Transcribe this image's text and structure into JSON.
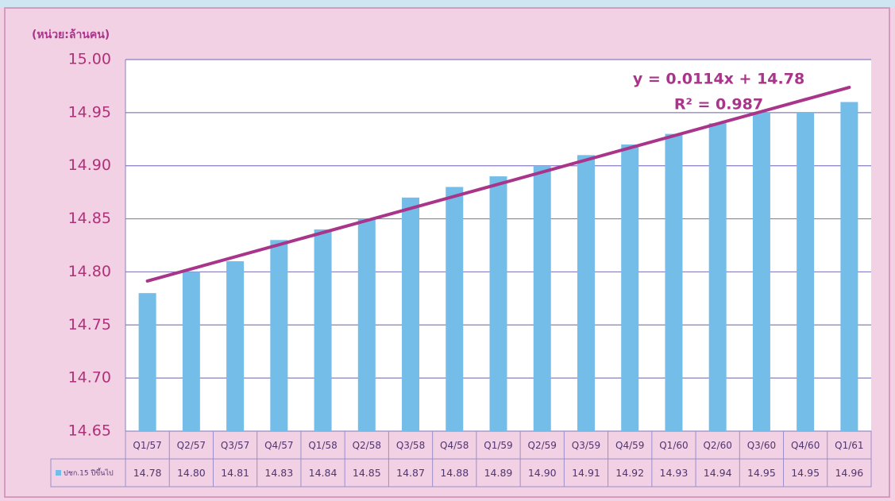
{
  "chart_data": {
    "type": "bar",
    "unit_label": "(หน่วย:ล้านคน)",
    "categories": [
      "Q1/57",
      "Q2/57",
      "Q3/57",
      "Q4/57",
      "Q1/58",
      "Q2/58",
      "Q3/58",
      "Q4/58",
      "Q1/59",
      "Q2/59",
      "Q3/59",
      "Q4/59",
      "Q1/60",
      "Q2/60",
      "Q3/60",
      "Q4/60",
      "Q1/61"
    ],
    "series": [
      {
        "name": "ปชก.15 ปีขึ้นไป",
        "color": "#74bde9",
        "values": [
          14.78,
          14.8,
          14.81,
          14.83,
          14.84,
          14.85,
          14.87,
          14.88,
          14.89,
          14.9,
          14.91,
          14.92,
          14.93,
          14.94,
          14.95,
          14.95,
          14.96
        ],
        "value_labels": [
          "14.78",
          "14.80",
          "14.81",
          "14.83",
          "14.84",
          "14.85",
          "14.87",
          "14.88",
          "14.89",
          "14.90",
          "14.91",
          "14.92",
          "14.93",
          "14.94",
          "14.95",
          "14.95",
          "14.96"
        ]
      }
    ],
    "ylim": [
      14.65,
      15.0
    ],
    "yticks": [
      14.65,
      {
        "value": 14.7,
        "label": "14.70"
      },
      14.75,
      {
        "value": 14.8,
        "label": "14.80"
      },
      14.85,
      {
        "value": 14.9,
        "label": "14.90"
      },
      14.95,
      {
        "value": 15.0,
        "label": "15.00"
      }
    ],
    "grid": true,
    "trendline": {
      "label": "y = 0.0114x + 14.78",
      "r2_label": "R² = 0.987",
      "slope": 0.0114,
      "intercept": 14.78,
      "color": "#a8358a"
    }
  }
}
